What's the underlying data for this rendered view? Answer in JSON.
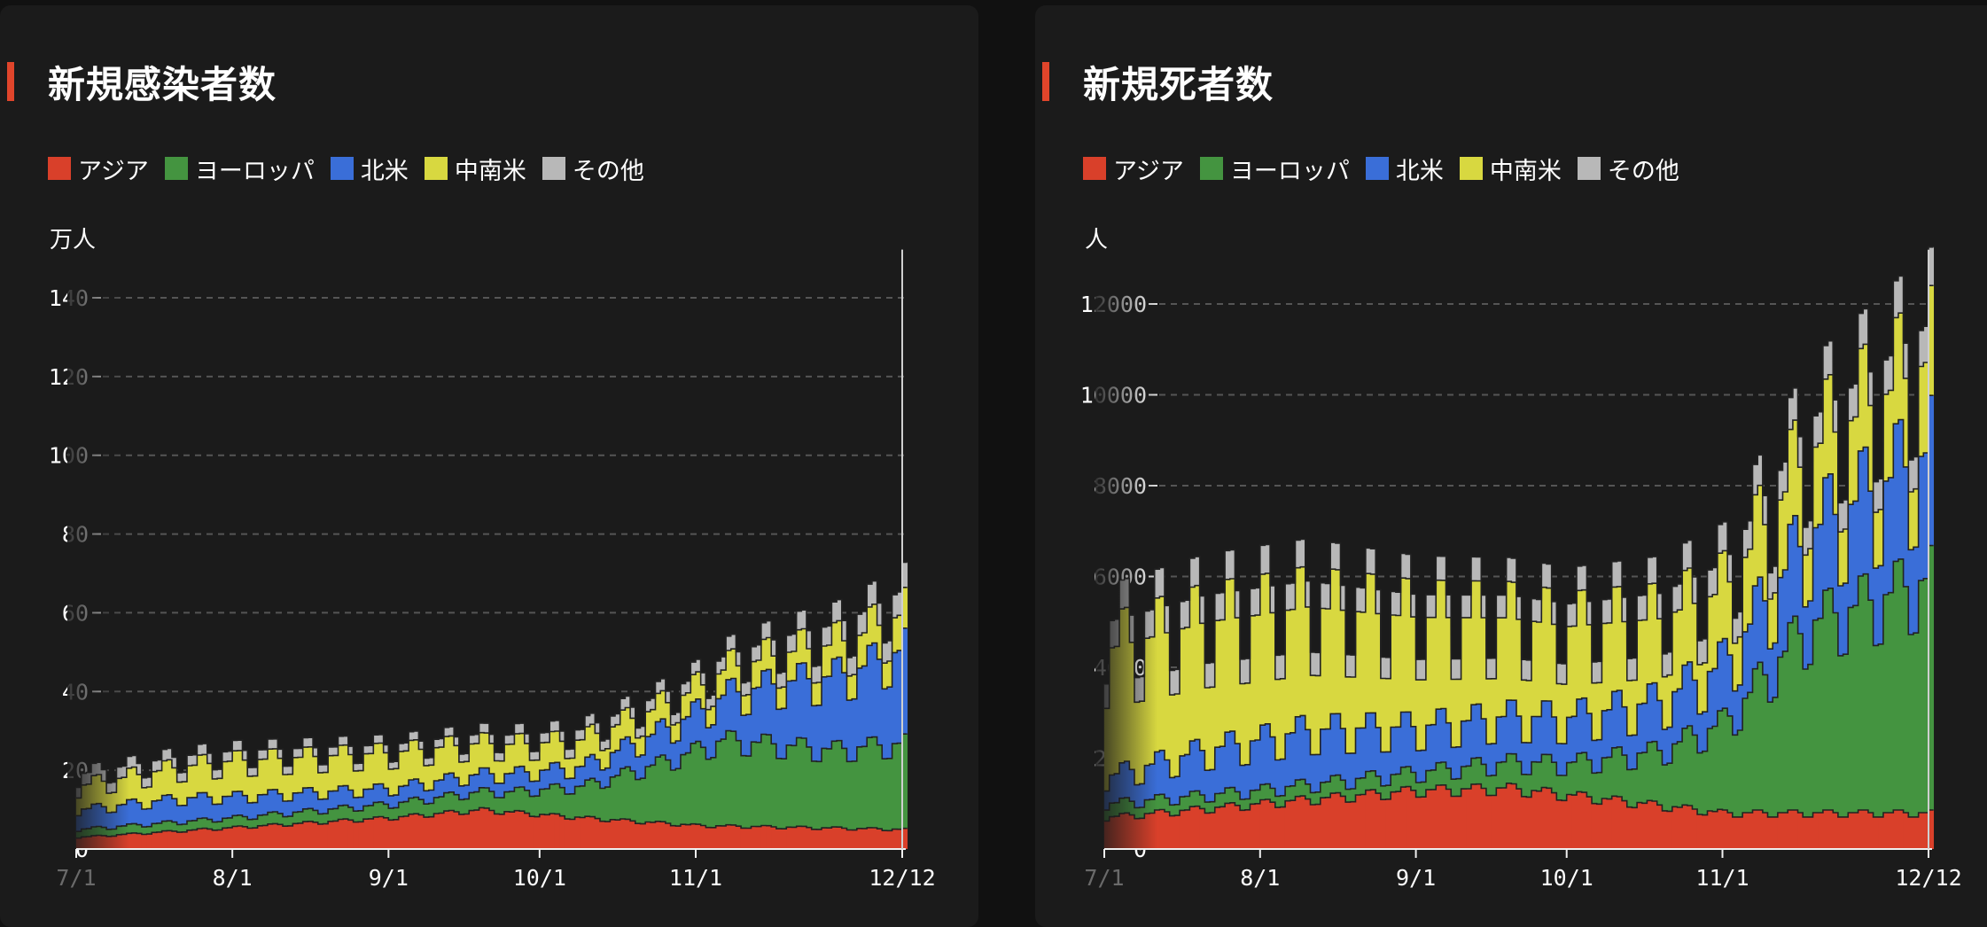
{
  "chart_data": [
    {
      "type": "area",
      "stacked": true,
      "title": "新規感染者数",
      "unit_label": "万人",
      "ylim": [
        0,
        150
      ],
      "yticks": [
        0,
        20,
        40,
        60,
        80,
        100,
        120,
        140
      ],
      "x_range": [
        "7/1",
        "12/12"
      ],
      "x_ticks": [
        "7/1",
        "8/1",
        "9/1",
        "10/1",
        "11/1",
        "12/12"
      ],
      "x_tick_days": [
        0,
        31,
        62,
        92,
        123,
        164
      ],
      "grid": true,
      "legend_position": "top-left",
      "series": [
        {
          "name": "アジア",
          "color": "#d9402a",
          "anchors": [
            [
              0,
              3
            ],
            [
              31,
              5.5
            ],
            [
              62,
              8
            ],
            [
              80,
              10
            ],
            [
              100,
              8
            ],
            [
              123,
              6
            ],
            [
              164,
              5
            ]
          ],
          "weekly_amp": 0.08
        },
        {
          "name": "ヨーロッパ",
          "color": "#449440",
          "anchors": [
            [
              0,
              2
            ],
            [
              31,
              2.5
            ],
            [
              62,
              3.5
            ],
            [
              85,
              5
            ],
            [
              100,
              8
            ],
            [
              115,
              15
            ],
            [
              128,
              22
            ],
            [
              150,
              20
            ],
            [
              164,
              22
            ]
          ],
          "weekly_amp": 0.15
        },
        {
          "name": "北米",
          "color": "#3a6ed8",
          "anchors": [
            [
              0,
              5
            ],
            [
              20,
              6
            ],
            [
              40,
              5
            ],
            [
              62,
              4
            ],
            [
              100,
              5
            ],
            [
              115,
              8
            ],
            [
              125,
              10
            ],
            [
              140,
              16
            ],
            [
              155,
              20
            ],
            [
              164,
              24
            ]
          ],
          "weekly_amp": 0.2
        },
        {
          "name": "中南米",
          "color": "#d8d840",
          "anchors": [
            [
              0,
              6
            ],
            [
              31,
              9
            ],
            [
              62,
              9
            ],
            [
              92,
              7
            ],
            [
              123,
              6
            ],
            [
              164,
              9
            ]
          ],
          "weekly_amp": 0.25
        },
        {
          "name": "その他",
          "color": "#b8b8b8",
          "anchors": [
            [
              0,
              3
            ],
            [
              31,
              2.5
            ],
            [
              62,
              2
            ],
            [
              92,
              2.5
            ],
            [
              123,
              3
            ],
            [
              164,
              6
            ]
          ],
          "weekly_amp": 0.1
        }
      ]
    },
    {
      "type": "area",
      "stacked": true,
      "title": "新規死者数",
      "unit_label": "人",
      "ylim": [
        0,
        13000
      ],
      "yticks": [
        0,
        2000,
        4000,
        6000,
        8000,
        10000,
        12000
      ],
      "x_range": [
        "7/1",
        "12/12"
      ],
      "x_ticks": [
        "7/1",
        "8/1",
        "9/1",
        "10/1",
        "11/1",
        "12/12"
      ],
      "x_tick_days": [
        0,
        31,
        62,
        92,
        123,
        164
      ],
      "grid": true,
      "legend_position": "top-left",
      "series": [
        {
          "name": "アジア",
          "color": "#d9402a",
          "anchors": [
            [
              0,
              700
            ],
            [
              20,
              900
            ],
            [
              40,
              1100
            ],
            [
              62,
              1300
            ],
            [
              80,
              1350
            ],
            [
              100,
              1100
            ],
            [
              123,
              800
            ],
            [
              164,
              800
            ]
          ],
          "weekly_amp": 0.12
        },
        {
          "name": "ヨーロッパ",
          "color": "#449440",
          "anchors": [
            [
              0,
              300
            ],
            [
              31,
              300
            ],
            [
              62,
              400
            ],
            [
              92,
              700
            ],
            [
              110,
              1200
            ],
            [
              123,
              2000
            ],
            [
              140,
              4200
            ],
            [
              155,
              4800
            ],
            [
              164,
              5200
            ]
          ],
          "weekly_amp": 0.2
        },
        {
          "name": "北米",
          "color": "#3a6ed8",
          "anchors": [
            [
              0,
              600
            ],
            [
              20,
              1000
            ],
            [
              40,
              1200
            ],
            [
              62,
              1000
            ],
            [
              92,
              1000
            ],
            [
              110,
              1100
            ],
            [
              123,
              1300
            ],
            [
              140,
              2000
            ],
            [
              164,
              2800
            ]
          ],
          "weekly_amp": 0.3
        },
        {
          "name": "中南米",
          "color": "#d8d840",
          "anchors": [
            [
              0,
              2800
            ],
            [
              20,
              2800
            ],
            [
              40,
              2700
            ],
            [
              62,
              2400
            ],
            [
              92,
              2000
            ],
            [
              110,
              1800
            ],
            [
              123,
              1600
            ],
            [
              164,
              2000
            ]
          ],
          "weekly_amp": 0.35
        },
        {
          "name": "その他",
          "color": "#b8b8b8",
          "anchors": [
            [
              0,
              600
            ],
            [
              31,
              600
            ],
            [
              62,
              500
            ],
            [
              92,
              500
            ],
            [
              123,
              600
            ],
            [
              164,
              800
            ]
          ],
          "weekly_amp": 0.1
        }
      ]
    }
  ]
}
